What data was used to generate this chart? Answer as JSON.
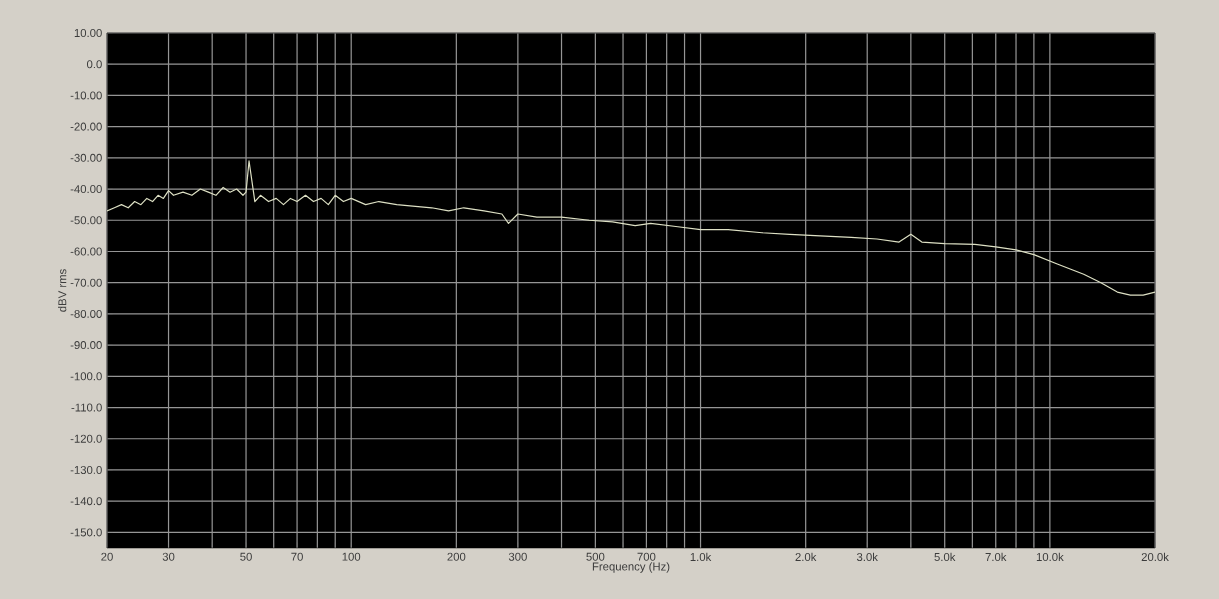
{
  "chart_data": {
    "type": "line",
    "xlabel": "Frequency (Hz)",
    "ylabel": "dBV rms",
    "log": "x",
    "grid": true,
    "xlim": [
      20,
      20000
    ],
    "ylim": [
      -155,
      10
    ],
    "xticks": [
      20,
      30,
      {
        "value": 40,
        "label": null
      },
      50,
      {
        "value": 60,
        "label": null
      },
      70,
      {
        "value": 80,
        "label": null
      },
      {
        "value": 90,
        "label": null
      },
      100,
      200,
      300,
      {
        "value": 400,
        "label": null
      },
      500,
      {
        "value": 600,
        "label": null
      },
      700,
      {
        "value": 800,
        "label": null
      },
      {
        "value": 900,
        "label": null
      },
      {
        "value": 1000,
        "label": "1.0k"
      },
      {
        "value": 2000,
        "label": "2.0k"
      },
      {
        "value": 3000,
        "label": "3.0k"
      },
      {
        "value": 4000,
        "label": null
      },
      {
        "value": 5000,
        "label": "5.0k"
      },
      {
        "value": 6000,
        "label": null
      },
      {
        "value": 7000,
        "label": "7.0k"
      },
      {
        "value": 8000,
        "label": null
      },
      {
        "value": 9000,
        "label": null
      },
      {
        "value": 10000,
        "label": "10.0k"
      },
      {
        "value": 20000,
        "label": "20.0k"
      }
    ],
    "yticks": [
      {
        "value": 10,
        "label": "10.00"
      },
      {
        "value": 0,
        "label": "0.0"
      },
      {
        "value": -10,
        "label": "-10.00"
      },
      {
        "value": -20,
        "label": "-20.00"
      },
      {
        "value": -30,
        "label": "-30.00"
      },
      {
        "value": -40,
        "label": "-40.00"
      },
      {
        "value": -50,
        "label": "-50.00"
      },
      {
        "value": -60,
        "label": "-60.00"
      },
      {
        "value": -70,
        "label": "-70.00"
      },
      {
        "value": -80,
        "label": "-80.00"
      },
      {
        "value": -90,
        "label": "-90.00"
      },
      {
        "value": -100,
        "label": "-100.0"
      },
      {
        "value": -110,
        "label": "-110.0"
      },
      {
        "value": -120,
        "label": "-120.0"
      },
      {
        "value": -130,
        "label": "-130.0"
      },
      {
        "value": -140,
        "label": "-140.0"
      },
      {
        "value": -150,
        "label": "-150.0"
      }
    ],
    "x": [
      20,
      21,
      22,
      23,
      24,
      25,
      26,
      27,
      28,
      29,
      30,
      31,
      33,
      35,
      37,
      39,
      41,
      43,
      45,
      47,
      49,
      50,
      51,
      53,
      55,
      58,
      61,
      64,
      67,
      70,
      74,
      78,
      82,
      86,
      90,
      95,
      100,
      110,
      120,
      135,
      150,
      170,
      190,
      210,
      240,
      270,
      282,
      300,
      340,
      400,
      480,
      560,
      650,
      720,
      850,
      1000,
      1200,
      1500,
      1800,
      2200,
      2700,
      3200,
      3700,
      4000,
      4300,
      5000,
      6100,
      7000,
      8000,
      9000,
      10500,
      12500,
      14000,
      15600,
      17000,
      18500,
      20000
    ],
    "series": [
      {
        "color": "#dde0c4",
        "values": [
          -47,
          -46,
          -45,
          -46,
          -44,
          -45,
          -43,
          -44,
          -42,
          -43,
          -40.5,
          -42,
          -41,
          -42,
          -40,
          -41,
          -42,
          -39.5,
          -41,
          -40,
          -42,
          -41,
          -31,
          -44,
          -42,
          -44,
          -43,
          -45,
          -43,
          -44,
          -42,
          -44,
          -43,
          -45,
          -42,
          -44,
          -43,
          -45,
          -44,
          -45,
          -45.5,
          -46,
          -47,
          -46,
          -47,
          -48,
          -51,
          -48,
          -49,
          -49,
          -50,
          -50.5,
          -51.7,
          -51,
          -52,
          -53,
          -53,
          -54,
          -54.5,
          -55,
          -55.5,
          -56,
          -57,
          -54.5,
          -57,
          -57.5,
          -57.7,
          -58.5,
          -59.5,
          -61,
          -64,
          -67.3,
          -70,
          -73,
          -74,
          -74,
          -73
        ]
      }
    ]
  }
}
